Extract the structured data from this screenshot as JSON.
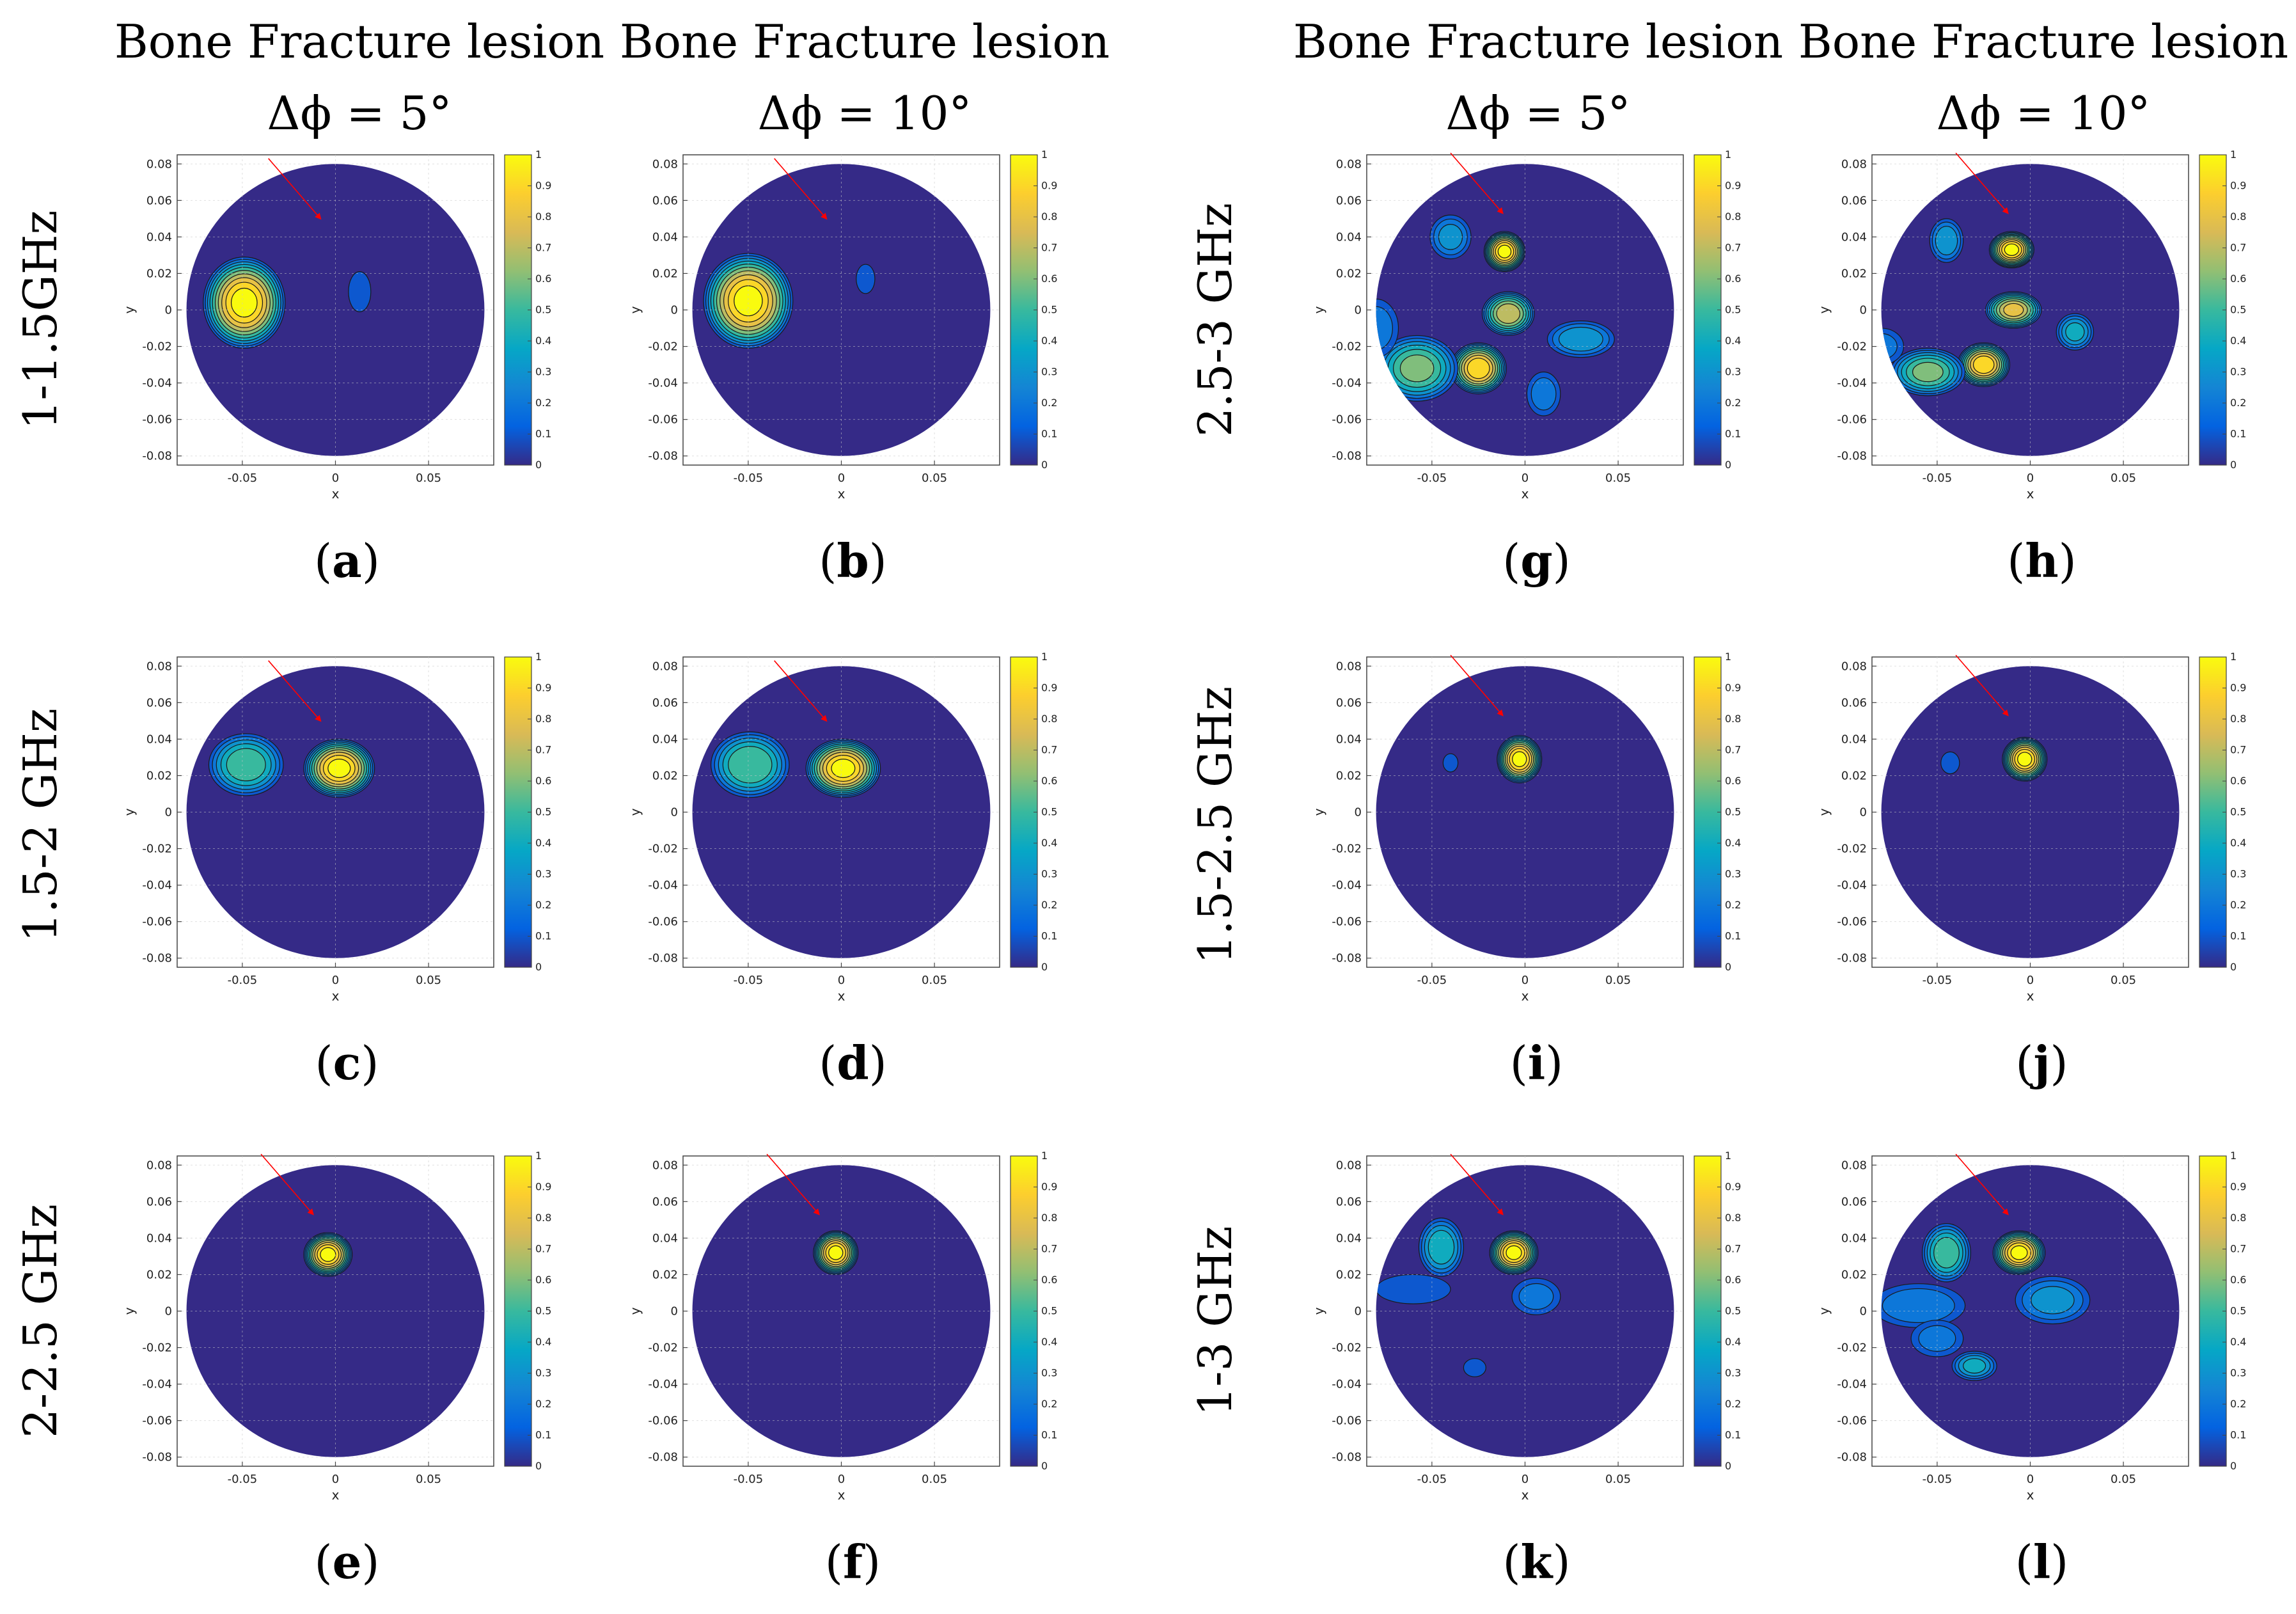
{
  "column_titles": [
    {
      "line1": "Bone Fracture lesion",
      "line2": "Δϕ = 5°"
    },
    {
      "line1": "Bone Fracture lesion",
      "line2": "Δϕ = 10°"
    },
    {
      "line1": "Bone Fracture lesion",
      "line2": "Δϕ = 5°"
    },
    {
      "line1": "Bone Fracture lesion",
      "line2": "Δϕ = 10°"
    }
  ],
  "row_labels": [
    "1-1.5GHz",
    "1.5-2 GHz",
    "2-2.5 GHz",
    "2.5-3 GHz",
    "1.5-2.5 GHz",
    "1-3 GHz"
  ],
  "colors": {
    "background": "#352a87",
    "arrow": "#ff0000",
    "grid": "#c8c8c8",
    "colormap": [
      "#352a87",
      "#0363e1",
      "#1485d4",
      "#06a7c6",
      "#38b99e",
      "#92bf73",
      "#d9ba56",
      "#fcce2e",
      "#f9fb0e"
    ]
  },
  "chart_data": [
    {
      "type": "heatmap",
      "panel": "a",
      "label": "(a)",
      "band": "1-1.5GHz",
      "delta_phi_deg": 5,
      "xlabel": "x",
      "ylabel": "y",
      "xlim": [
        -0.085,
        0.085
      ],
      "ylim": [
        -0.085,
        0.085
      ],
      "xticks": [
        "-0.05",
        "0",
        "0.05"
      ],
      "yticks": [
        "0.08",
        "0.06",
        "0.04",
        "0.02",
        "0",
        "-0.02",
        "-0.04",
        "-0.06",
        "-0.08"
      ],
      "colorbar": {
        "min": 0,
        "max": 1,
        "ticks": [
          "1",
          "0.9",
          "0.8",
          "0.7",
          "0.6",
          "0.5",
          "0.4",
          "0.3",
          "0.2",
          "0.1",
          "0"
        ]
      },
      "arrow_tip": [
        -0.008,
        0.05
      ],
      "blobs": [
        {
          "x": -0.049,
          "y": 0.004,
          "rx": 0.022,
          "ry": 0.025,
          "peak": 1.0
        },
        {
          "x": 0.013,
          "y": 0.01,
          "rx": 0.006,
          "ry": 0.011,
          "peak": 0.12
        }
      ]
    },
    {
      "type": "heatmap",
      "panel": "b",
      "label": "(b)",
      "band": "1-1.5GHz",
      "delta_phi_deg": 10,
      "xlabel": "x",
      "ylabel": "y",
      "xlim": [
        -0.085,
        0.085
      ],
      "ylim": [
        -0.085,
        0.085
      ],
      "xticks": [
        "-0.05",
        "0",
        "0.05"
      ],
      "yticks": [
        "0.08",
        "0.06",
        "0.04",
        "0.02",
        "0",
        "-0.02",
        "-0.04",
        "-0.06",
        "-0.08"
      ],
      "colorbar": {
        "min": 0,
        "max": 1,
        "ticks": [
          "1",
          "0.9",
          "0.8",
          "0.7",
          "0.6",
          "0.5",
          "0.4",
          "0.3",
          "0.2",
          "0.1",
          "0"
        ]
      },
      "arrow_tip": [
        -0.008,
        0.05
      ],
      "blobs": [
        {
          "x": -0.05,
          "y": 0.005,
          "rx": 0.024,
          "ry": 0.026,
          "peak": 1.0
        },
        {
          "x": 0.013,
          "y": 0.017,
          "rx": 0.005,
          "ry": 0.008,
          "peak": 0.1
        }
      ]
    },
    {
      "type": "heatmap",
      "panel": "c",
      "label": "(c)",
      "band": "1.5-2 GHz",
      "delta_phi_deg": 5,
      "xlabel": "x",
      "ylabel": "y",
      "xlim": [
        -0.085,
        0.085
      ],
      "ylim": [
        -0.085,
        0.085
      ],
      "xticks": [
        "-0.05",
        "0",
        "0.05"
      ],
      "yticks": [
        "0.08",
        "0.06",
        "0.04",
        "0.02",
        "0",
        "-0.02",
        "-0.04",
        "-0.06",
        "-0.08"
      ],
      "colorbar": {
        "min": 0,
        "max": 1,
        "ticks": [
          "1",
          "0.9",
          "0.8",
          "0.7",
          "0.6",
          "0.5",
          "0.4",
          "0.3",
          "0.2",
          "0.1",
          "0"
        ]
      },
      "arrow_tip": [
        -0.008,
        0.05
      ],
      "blobs": [
        {
          "x": -0.048,
          "y": 0.026,
          "rx": 0.02,
          "ry": 0.017,
          "peak": 0.55
        },
        {
          "x": 0.002,
          "y": 0.024,
          "rx": 0.019,
          "ry": 0.016,
          "peak": 1.0
        }
      ]
    },
    {
      "type": "heatmap",
      "panel": "d",
      "label": "(d)",
      "band": "1.5-2 GHz",
      "delta_phi_deg": 10,
      "xlabel": "x",
      "ylabel": "y",
      "xlim": [
        -0.085,
        0.085
      ],
      "ylim": [
        -0.085,
        0.085
      ],
      "xticks": [
        "-0.05",
        "0",
        "0.05"
      ],
      "yticks": [
        "0.08",
        "0.06",
        "0.04",
        "0.02",
        "0",
        "-0.02",
        "-0.04",
        "-0.06",
        "-0.08"
      ],
      "colorbar": {
        "min": 0,
        "max": 1,
        "ticks": [
          "1",
          "0.9",
          "0.8",
          "0.7",
          "0.6",
          "0.5",
          "0.4",
          "0.3",
          "0.2",
          "0.1",
          "0"
        ]
      },
      "arrow_tip": [
        -0.008,
        0.05
      ],
      "blobs": [
        {
          "x": -0.049,
          "y": 0.026,
          "rx": 0.021,
          "ry": 0.018,
          "peak": 0.58
        },
        {
          "x": 0.001,
          "y": 0.024,
          "rx": 0.02,
          "ry": 0.016,
          "peak": 1.0
        }
      ]
    },
    {
      "type": "heatmap",
      "panel": "e",
      "label": "(e)",
      "band": "2-2.5 GHz",
      "delta_phi_deg": 5,
      "xlabel": "x",
      "ylabel": "y",
      "xlim": [
        -0.085,
        0.085
      ],
      "ylim": [
        -0.085,
        0.085
      ],
      "xticks": [
        "-0.05",
        "0",
        "0.05"
      ],
      "yticks": [
        "0.08",
        "0.06",
        "0.04",
        "0.02",
        "0",
        "-0.02",
        "-0.04",
        "-0.06",
        "-0.08"
      ],
      "colorbar": {
        "min": 0,
        "max": 1,
        "ticks": [
          "1",
          "0.9",
          "0.8",
          "0.7",
          "0.6",
          "0.5",
          "0.4",
          "0.3",
          "0.2",
          "0.1",
          "0"
        ]
      },
      "arrow_tip": [
        -0.012,
        0.053
      ],
      "blobs": [
        {
          "x": -0.004,
          "y": 0.031,
          "rx": 0.013,
          "ry": 0.012,
          "peak": 1.0
        }
      ]
    },
    {
      "type": "heatmap",
      "panel": "f",
      "label": "(f)",
      "band": "2-2.5 GHz",
      "delta_phi_deg": 10,
      "xlabel": "x",
      "ylabel": "y",
      "xlim": [
        -0.085,
        0.085
      ],
      "ylim": [
        -0.085,
        0.085
      ],
      "xticks": [
        "-0.05",
        "0",
        "0.05"
      ],
      "yticks": [
        "0.08",
        "0.06",
        "0.04",
        "0.02",
        "0",
        "-0.02",
        "-0.04",
        "-0.06",
        "-0.08"
      ],
      "colorbar": {
        "min": 0,
        "max": 1,
        "ticks": [
          "1",
          "0.9",
          "0.8",
          "0.7",
          "0.6",
          "0.5",
          "0.4",
          "0.3",
          "0.2",
          "0.1",
          "0"
        ]
      },
      "arrow_tip": [
        -0.012,
        0.053
      ],
      "blobs": [
        {
          "x": -0.003,
          "y": 0.032,
          "rx": 0.012,
          "ry": 0.012,
          "peak": 1.0
        }
      ]
    },
    {
      "type": "heatmap",
      "panel": "g",
      "label": "(g)",
      "band": "2.5-3 GHz",
      "delta_phi_deg": 5,
      "xlabel": "x",
      "ylabel": "y",
      "xlim": [
        -0.085,
        0.085
      ],
      "ylim": [
        -0.085,
        0.085
      ],
      "xticks": [
        "-0.05",
        "0",
        "0.05"
      ],
      "yticks": [
        "0.08",
        "0.06",
        "0.04",
        "0.02",
        "0",
        "-0.02",
        "-0.04",
        "-0.06",
        "-0.08"
      ],
      "colorbar": {
        "min": 0,
        "max": 1,
        "ticks": [
          "1",
          "0.9",
          "0.8",
          "0.7",
          "0.6",
          "0.5",
          "0.4",
          "0.3",
          "0.2",
          "0.1",
          "0"
        ]
      },
      "arrow_tip": [
        -0.012,
        0.053
      ],
      "blobs": [
        {
          "x": -0.011,
          "y": 0.032,
          "rx": 0.011,
          "ry": 0.011,
          "peak": 1.0
        },
        {
          "x": -0.04,
          "y": 0.04,
          "rx": 0.011,
          "ry": 0.012,
          "peak": 0.3
        },
        {
          "x": -0.009,
          "y": -0.002,
          "rx": 0.014,
          "ry": 0.012,
          "peak": 0.75
        },
        {
          "x": -0.025,
          "y": -0.032,
          "rx": 0.015,
          "ry": 0.014,
          "peak": 0.95
        },
        {
          "x": -0.058,
          "y": -0.032,
          "rx": 0.022,
          "ry": 0.018,
          "peak": 0.6
        },
        {
          "x": 0.03,
          "y": -0.016,
          "rx": 0.018,
          "ry": 0.01,
          "peak": 0.35
        },
        {
          "x": 0.01,
          "y": -0.046,
          "rx": 0.009,
          "ry": 0.012,
          "peak": 0.22
        },
        {
          "x": -0.08,
          "y": -0.01,
          "rx": 0.012,
          "ry": 0.016,
          "peak": 0.22
        }
      ]
    },
    {
      "type": "heatmap",
      "panel": "h",
      "label": "(h)",
      "band": "2.5-3 GHz",
      "delta_phi_deg": 10,
      "xlabel": "x",
      "ylabel": "y",
      "xlim": [
        -0.085,
        0.085
      ],
      "ylim": [
        -0.085,
        0.085
      ],
      "xticks": [
        "-0.05",
        "0",
        "0.05"
      ],
      "yticks": [
        "0.08",
        "0.06",
        "0.04",
        "0.02",
        "0",
        "-0.02",
        "-0.04",
        "-0.06",
        "-0.08"
      ],
      "colorbar": {
        "min": 0,
        "max": 1,
        "ticks": [
          "1",
          "0.9",
          "0.8",
          "0.7",
          "0.6",
          "0.5",
          "0.4",
          "0.3",
          "0.2",
          "0.1",
          "0"
        ]
      },
      "arrow_tip": [
        -0.012,
        0.053
      ],
      "blobs": [
        {
          "x": -0.01,
          "y": 0.033,
          "rx": 0.012,
          "ry": 0.01,
          "peak": 1.0
        },
        {
          "x": -0.045,
          "y": 0.038,
          "rx": 0.009,
          "ry": 0.012,
          "peak": 0.35
        },
        {
          "x": -0.009,
          "y": 0.0,
          "rx": 0.015,
          "ry": 0.01,
          "peak": 0.8
        },
        {
          "x": -0.025,
          "y": -0.03,
          "rx": 0.014,
          "ry": 0.012,
          "peak": 0.95
        },
        {
          "x": -0.055,
          "y": -0.034,
          "rx": 0.02,
          "ry": 0.013,
          "peak": 0.6
        },
        {
          "x": 0.024,
          "y": -0.012,
          "rx": 0.01,
          "ry": 0.01,
          "peak": 0.4
        },
        {
          "x": -0.08,
          "y": -0.02,
          "rx": 0.012,
          "ry": 0.01,
          "peak": 0.2
        }
      ]
    },
    {
      "type": "heatmap",
      "panel": "i",
      "label": "(i)",
      "band": "1.5-2.5 GHz",
      "delta_phi_deg": 5,
      "xlabel": "x",
      "ylabel": "y",
      "xlim": [
        -0.085,
        0.085
      ],
      "ylim": [
        -0.085,
        0.085
      ],
      "xticks": [
        "-0.05",
        "0",
        "0.05"
      ],
      "yticks": [
        "0.08",
        "0.06",
        "0.04",
        "0.02",
        "0",
        "-0.02",
        "-0.04",
        "-0.06",
        "-0.08"
      ],
      "colorbar": {
        "min": 0,
        "max": 1,
        "ticks": [
          "1",
          "0.9",
          "0.8",
          "0.7",
          "0.6",
          "0.5",
          "0.4",
          "0.3",
          "0.2",
          "0.1",
          "0"
        ]
      },
      "arrow_tip": [
        -0.012,
        0.053
      ],
      "blobs": [
        {
          "x": -0.003,
          "y": 0.029,
          "rx": 0.012,
          "ry": 0.013,
          "peak": 1.0
        },
        {
          "x": -0.04,
          "y": 0.027,
          "rx": 0.004,
          "ry": 0.005,
          "peak": 0.12
        }
      ]
    },
    {
      "type": "heatmap",
      "panel": "j",
      "label": "(j)",
      "band": "1.5-2.5 GHz",
      "delta_phi_deg": 10,
      "xlabel": "x",
      "ylabel": "y",
      "xlim": [
        -0.085,
        0.085
      ],
      "ylim": [
        -0.085,
        0.085
      ],
      "xticks": [
        "-0.05",
        "0",
        "0.05"
      ],
      "yticks": [
        "0.08",
        "0.06",
        "0.04",
        "0.02",
        "0",
        "-0.02",
        "-0.04",
        "-0.06",
        "-0.08"
      ],
      "colorbar": {
        "min": 0,
        "max": 1,
        "ticks": [
          "1",
          "0.9",
          "0.8",
          "0.7",
          "0.6",
          "0.5",
          "0.4",
          "0.3",
          "0.2",
          "0.1",
          "0"
        ]
      },
      "arrow_tip": [
        -0.012,
        0.053
      ],
      "blobs": [
        {
          "x": -0.003,
          "y": 0.029,
          "rx": 0.012,
          "ry": 0.012,
          "peak": 1.0
        },
        {
          "x": -0.043,
          "y": 0.027,
          "rx": 0.005,
          "ry": 0.006,
          "peak": 0.12
        }
      ]
    },
    {
      "type": "heatmap",
      "panel": "k",
      "label": "(k)",
      "band": "1-3 GHz",
      "delta_phi_deg": 5,
      "xlabel": "x",
      "ylabel": "y",
      "xlim": [
        -0.085,
        0.085
      ],
      "ylim": [
        -0.085,
        0.085
      ],
      "xticks": [
        "-0.05",
        "0",
        "0.05"
      ],
      "yticks": [
        "0.08",
        "0.06",
        "0.04",
        "0.02",
        "0",
        "-0.02",
        "-0.04",
        "-0.06",
        "-0.08"
      ],
      "colorbar": {
        "min": 0,
        "max": 1,
        "ticks": [
          "1",
          "0.9",
          "0.8",
          "0.7",
          "0.6",
          "0.5",
          "0.4",
          "0.3",
          "0.2",
          "0.1",
          "0"
        ]
      },
      "arrow_tip": [
        -0.012,
        0.053
      ],
      "blobs": [
        {
          "x": -0.006,
          "y": 0.032,
          "rx": 0.013,
          "ry": 0.012,
          "peak": 1.0
        },
        {
          "x": -0.045,
          "y": 0.035,
          "rx": 0.012,
          "ry": 0.016,
          "peak": 0.45
        },
        {
          "x": -0.06,
          "y": 0.012,
          "rx": 0.02,
          "ry": 0.008,
          "peak": 0.18
        },
        {
          "x": 0.006,
          "y": 0.008,
          "rx": 0.013,
          "ry": 0.01,
          "peak": 0.2
        },
        {
          "x": -0.027,
          "y": -0.031,
          "rx": 0.006,
          "ry": 0.005,
          "peak": 0.12
        }
      ]
    },
    {
      "type": "heatmap",
      "panel": "l",
      "label": "(l)",
      "band": "1-3 GHz",
      "delta_phi_deg": 10,
      "xlabel": "x",
      "ylabel": "y",
      "xlim": [
        -0.085,
        0.085
      ],
      "ylim": [
        -0.085,
        0.085
      ],
      "xticks": [
        "-0.05",
        "0",
        "0.05"
      ],
      "yticks": [
        "0.08",
        "0.06",
        "0.04",
        "0.02",
        "0",
        "-0.02",
        "-0.04",
        "-0.06",
        "-0.08"
      ],
      "colorbar": {
        "min": 0,
        "max": 1,
        "ticks": [
          "1",
          "0.9",
          "0.8",
          "0.7",
          "0.6",
          "0.5",
          "0.4",
          "0.3",
          "0.2",
          "0.1",
          "0"
        ]
      },
      "arrow_tip": [
        -0.012,
        0.053
      ],
      "blobs": [
        {
          "x": -0.006,
          "y": 0.032,
          "rx": 0.014,
          "ry": 0.012,
          "peak": 1.0
        },
        {
          "x": -0.045,
          "y": 0.032,
          "rx": 0.013,
          "ry": 0.016,
          "peak": 0.55
        },
        {
          "x": -0.06,
          "y": 0.003,
          "rx": 0.025,
          "ry": 0.012,
          "peak": 0.25
        },
        {
          "x": 0.012,
          "y": 0.006,
          "rx": 0.02,
          "ry": 0.013,
          "peak": 0.3
        },
        {
          "x": -0.03,
          "y": -0.03,
          "rx": 0.012,
          "ry": 0.008,
          "peak": 0.4
        },
        {
          "x": -0.05,
          "y": -0.015,
          "rx": 0.014,
          "ry": 0.01,
          "peak": 0.2
        }
      ]
    }
  ]
}
